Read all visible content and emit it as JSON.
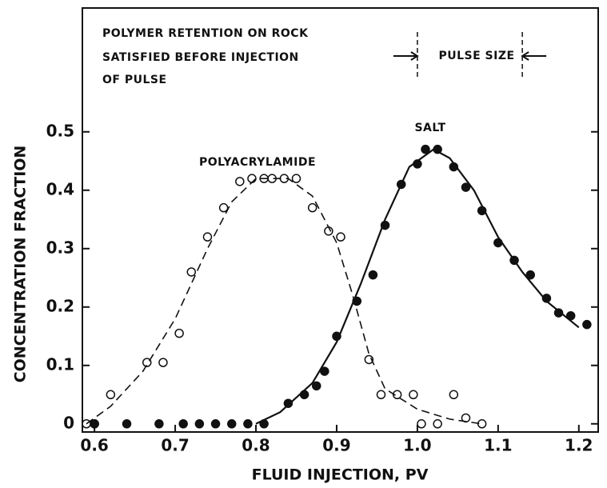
{
  "chart_data": {
    "type": "scatter",
    "xlabel": "FLUID INJECTION, PV",
    "ylabel": "CONCENTRATION FRACTION",
    "annotations": [
      "POLYMER RETENTION ON ROCK",
      "SATISFIED BEFORE INJECTION",
      "OF PULSE",
      "PULSE SIZE",
      "POLYACRYLAMIDE",
      "SALT"
    ],
    "pulse_bounds": [
      1.0,
      1.13
    ],
    "xlim": [
      0.585,
      1.224
    ],
    "ylim": [
      -0.014,
      0.712
    ],
    "xticks": [
      0.6,
      0.7,
      0.8,
      0.9,
      {
        "value": 1,
        "label": "1.0"
      },
      1.1,
      1.2
    ],
    "yticks": [
      0,
      0.1,
      0.2,
      0.3,
      0.4,
      0.5
    ],
    "series": [
      {
        "name": "POLYACRYLAMIDE",
        "mode": "markers",
        "filled": false,
        "color": "#111",
        "x": [
          0.59,
          0.6,
          0.62,
          0.665,
          0.685,
          0.705,
          0.72,
          0.74,
          0.76,
          0.78,
          0.795,
          0.81,
          0.82,
          0.835,
          0.85,
          0.87,
          0.89,
          0.905,
          0.925,
          0.94,
          0.955,
          0.975,
          0.995,
          1.005,
          1.025,
          1.045,
          1.06,
          1.08
        ],
        "values": [
          0,
          0,
          0.05,
          0.105,
          0.105,
          0.155,
          0.26,
          0.32,
          0.37,
          0.415,
          0.42,
          0.42,
          0.42,
          0.42,
          0.42,
          0.37,
          0.33,
          0.32,
          0.21,
          0.11,
          0.05,
          0.05,
          0.05,
          0,
          0,
          0.05,
          0.01,
          0
        ]
      },
      {
        "name": "SALT",
        "mode": "markers",
        "filled": true,
        "color": "#111",
        "x": [
          0.6,
          0.64,
          0.68,
          0.71,
          0.73,
          0.75,
          0.77,
          0.79,
          0.81,
          0.84,
          0.86,
          0.875,
          0.885,
          0.9,
          0.925,
          0.945,
          0.96,
          0.98,
          1.0,
          1.01,
          1.025,
          1.045,
          1.06,
          1.08,
          1.1,
          1.12,
          1.14,
          1.16,
          1.175,
          1.19,
          1.21
        ],
        "values": [
          0,
          0,
          0,
          0,
          0,
          0,
          0,
          0,
          0,
          0.035,
          0.05,
          0.065,
          0.09,
          0.15,
          0.21,
          0.255,
          0.34,
          0.41,
          0.445,
          0.47,
          0.47,
          0.44,
          0.405,
          0.365,
          0.31,
          0.28,
          0.255,
          0.215,
          0.19,
          0.185,
          0.17
        ]
      },
      {
        "name": "POLYACRYLAMIDE",
        "mode": "line",
        "dashed": true,
        "color": "#111",
        "x": [
          0.59,
          0.62,
          0.66,
          0.7,
          0.74,
          0.77,
          0.8,
          0.84,
          0.87,
          0.9,
          0.92,
          0.94,
          0.96,
          1.0,
          1.04,
          1.08
        ],
        "values": [
          0,
          0.03,
          0.09,
          0.18,
          0.3,
          0.38,
          0.42,
          0.42,
          0.39,
          0.31,
          0.22,
          0.12,
          0.06,
          0.025,
          0.008,
          0
        ]
      },
      {
        "name": "SALT",
        "mode": "line",
        "dashed": false,
        "color": "#111",
        "x": [
          0.8,
          0.83,
          0.87,
          0.9,
          0.93,
          0.96,
          0.99,
          1.02,
          1.04,
          1.07,
          1.1,
          1.13,
          1.16,
          1.2
        ],
        "values": [
          0,
          0.02,
          0.07,
          0.14,
          0.24,
          0.35,
          0.44,
          0.47,
          0.455,
          0.4,
          0.32,
          0.26,
          0.21,
          0.165
        ]
      }
    ]
  }
}
